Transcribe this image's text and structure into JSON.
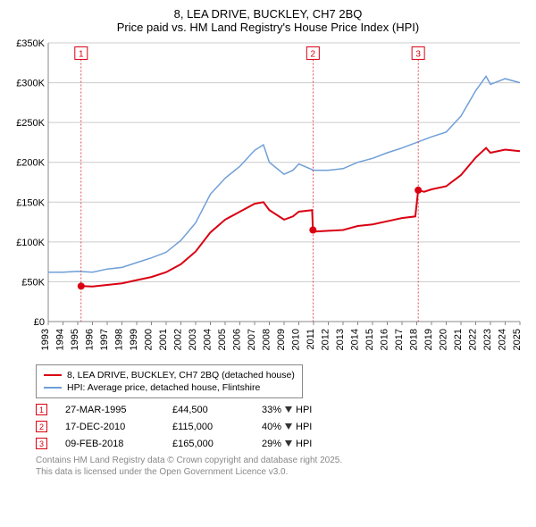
{
  "title": {
    "line1": "8, LEA DRIVE, BUCKLEY, CH7 2BQ",
    "line2": "Price paid vs. HM Land Registry's House Price Index (HPI)",
    "fontsize": 13
  },
  "chart": {
    "type": "line",
    "background_color": "#ffffff",
    "grid_color": "#cccccc",
    "axis_color": "#888888",
    "x": {
      "min": 1993,
      "max": 2025,
      "ticks": [
        1993,
        1994,
        1995,
        1996,
        1997,
        1998,
        1999,
        2000,
        2001,
        2002,
        2003,
        2004,
        2005,
        2006,
        2007,
        2008,
        2009,
        2010,
        2011,
        2012,
        2013,
        2014,
        2015,
        2016,
        2017,
        2018,
        2019,
        2020,
        2021,
        2022,
        2023,
        2024,
        2025
      ],
      "label_fontsize": 11,
      "label_rotation": -90
    },
    "y": {
      "min": 0,
      "max": 350000,
      "ticks": [
        0,
        50000,
        100000,
        150000,
        200000,
        250000,
        300000,
        350000
      ],
      "tick_labels": [
        "£0",
        "£50K",
        "£100K",
        "£150K",
        "£200K",
        "£250K",
        "£300K",
        "£350K"
      ],
      "label_fontsize": 11
    },
    "series": [
      {
        "id": "hpi",
        "label": "HPI: Average price, detached house, Flintshire",
        "color": "#6f9fd8",
        "line_width": 1.5,
        "data": [
          [
            1993,
            62000
          ],
          [
            1994,
            62000
          ],
          [
            1995,
            63000
          ],
          [
            1996,
            62000
          ],
          [
            1997,
            66000
          ],
          [
            1998,
            68000
          ],
          [
            1999,
            74000
          ],
          [
            2000,
            80000
          ],
          [
            2001,
            87000
          ],
          [
            2002,
            102000
          ],
          [
            2003,
            124000
          ],
          [
            2004,
            160000
          ],
          [
            2005,
            180000
          ],
          [
            2006,
            195000
          ],
          [
            2007,
            215000
          ],
          [
            2007.6,
            222000
          ],
          [
            2008,
            200000
          ],
          [
            2009,
            185000
          ],
          [
            2009.6,
            190000
          ],
          [
            2010,
            198000
          ],
          [
            2011,
            190000
          ],
          [
            2012,
            190000
          ],
          [
            2013,
            192000
          ],
          [
            2014,
            200000
          ],
          [
            2015,
            205000
          ],
          [
            2016,
            212000
          ],
          [
            2017,
            218000
          ],
          [
            2018,
            225000
          ],
          [
            2019,
            232000
          ],
          [
            2020,
            238000
          ],
          [
            2021,
            258000
          ],
          [
            2022,
            290000
          ],
          [
            2022.7,
            308000
          ],
          [
            2023,
            298000
          ],
          [
            2024,
            305000
          ],
          [
            2025,
            300000
          ]
        ]
      },
      {
        "id": "price_paid",
        "label": "8, LEA DRIVE, BUCKLEY, CH7 2BQ (detached house)",
        "color": "#d90012",
        "line_width": 2,
        "data": [
          [
            1995.23,
            44500
          ],
          [
            1996,
            44000
          ],
          [
            1997,
            46000
          ],
          [
            1998,
            48000
          ],
          [
            1999,
            52000
          ],
          [
            2000,
            56000
          ],
          [
            2001,
            62000
          ],
          [
            2002,
            72000
          ],
          [
            2003,
            88000
          ],
          [
            2004,
            112000
          ],
          [
            2005,
            128000
          ],
          [
            2006,
            138000
          ],
          [
            2007,
            148000
          ],
          [
            2007.6,
            150000
          ],
          [
            2008,
            140000
          ],
          [
            2009,
            128000
          ],
          [
            2009.6,
            132000
          ],
          [
            2010,
            138000
          ],
          [
            2010.9,
            140000
          ],
          [
            2010.96,
            115000
          ],
          [
            2011,
            113000
          ],
          [
            2012,
            114000
          ],
          [
            2013,
            115000
          ],
          [
            2014,
            120000
          ],
          [
            2015,
            122000
          ],
          [
            2016,
            126000
          ],
          [
            2017,
            130000
          ],
          [
            2017.9,
            132000
          ],
          [
            2018.1,
            165000
          ],
          [
            2018.5,
            163000
          ],
          [
            2019,
            166000
          ],
          [
            2020,
            170000
          ],
          [
            2021,
            184000
          ],
          [
            2022,
            206000
          ],
          [
            2022.7,
            218000
          ],
          [
            2023,
            212000
          ],
          [
            2024,
            216000
          ],
          [
            2025,
            214000
          ]
        ],
        "price_points": [
          {
            "x": 1995.23,
            "y": 44500
          },
          {
            "x": 2010.96,
            "y": 115000
          },
          {
            "x": 2018.1,
            "y": 165000
          }
        ]
      }
    ],
    "markers": [
      {
        "n": "1",
        "x": 1995.23,
        "box_y": 345000
      },
      {
        "n": "2",
        "x": 2010.96,
        "box_y": 345000
      },
      {
        "n": "3",
        "x": 2018.1,
        "box_y": 345000
      }
    ]
  },
  "legend": {
    "items": [
      {
        "color": "#d90012",
        "label": "8, LEA DRIVE, BUCKLEY, CH7 2BQ (detached house)",
        "width": 2
      },
      {
        "color": "#6f9fd8",
        "label": "HPI: Average price, detached house, Flintshire",
        "width": 2
      }
    ]
  },
  "table": {
    "rows": [
      {
        "n": "1",
        "date": "27-MAR-1995",
        "price": "£44,500",
        "delta": "33%",
        "dir": "down",
        "vs": "HPI"
      },
      {
        "n": "2",
        "date": "17-DEC-2010",
        "price": "£115,000",
        "delta": "40%",
        "dir": "down",
        "vs": "HPI"
      },
      {
        "n": "3",
        "date": "09-FEB-2018",
        "price": "£165,000",
        "delta": "29%",
        "dir": "down",
        "vs": "HPI"
      }
    ]
  },
  "footer": {
    "line1": "Contains HM Land Registry data © Crown copyright and database right 2025.",
    "line2": "This data is licensed under the Open Government Licence v3.0."
  }
}
